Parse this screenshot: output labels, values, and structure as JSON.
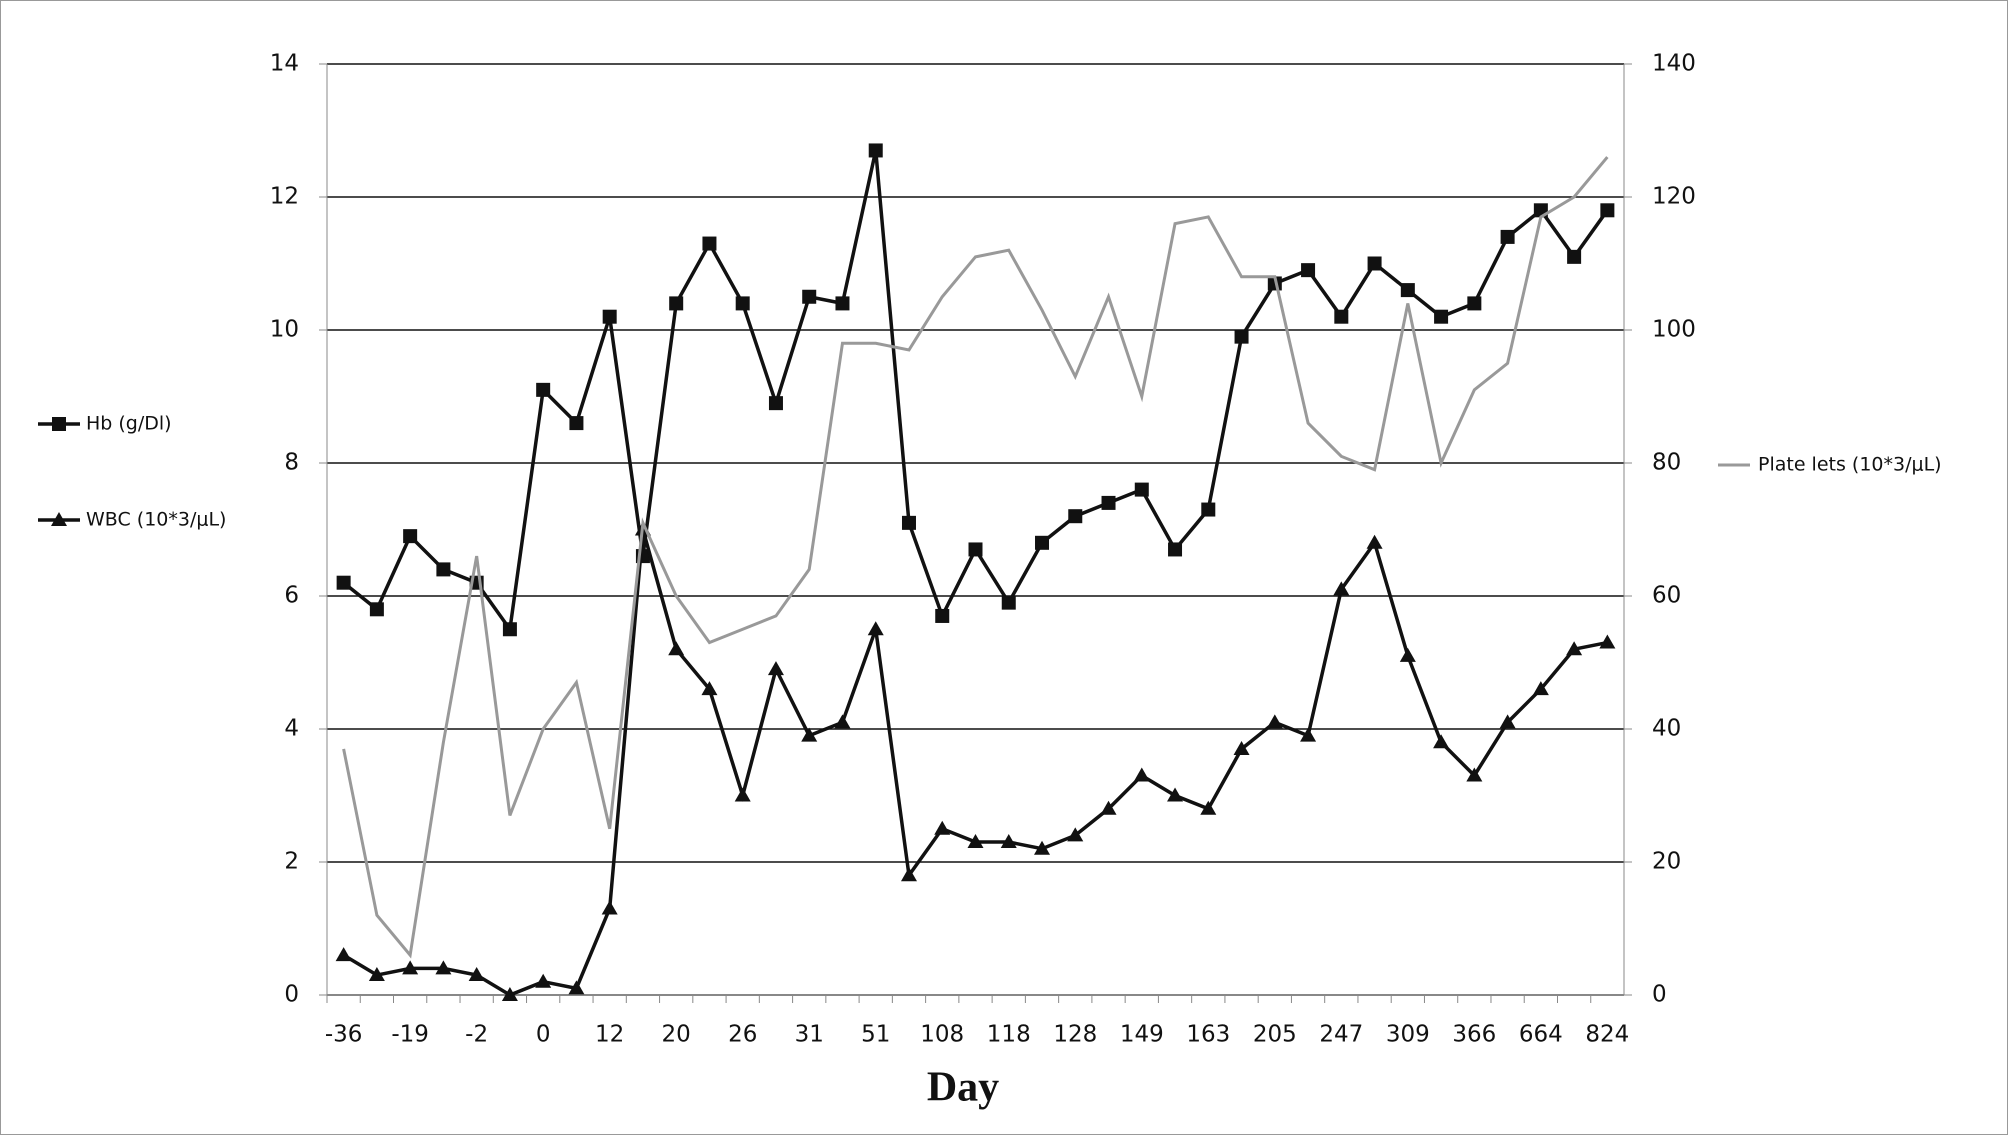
{
  "chart_data": {
    "type": "line",
    "x_label": "Day",
    "categories": [
      "-36",
      null,
      "-19",
      null,
      "-2",
      null,
      "0",
      null,
      "12",
      null,
      "20",
      null,
      "26",
      null,
      "31",
      null,
      "51",
      null,
      "108",
      null,
      "118",
      null,
      "128",
      null,
      "149",
      null,
      "163",
      null,
      "205",
      null,
      "247",
      null,
      "309",
      null,
      "366",
      null,
      "664",
      null,
      "824"
    ],
    "series": [
      {
        "name": "Hb (g/Dl)",
        "color": "#111111",
        "marker": "square",
        "values": [
          6.2,
          5.8,
          6.9,
          6.4,
          6.2,
          5.5,
          9.1,
          8.6,
          10.2,
          6.6,
          10.4,
          11.3,
          10.4,
          8.9,
          10.5,
          10.4,
          12.7,
          7.1,
          5.7,
          6.7,
          5.9,
          6.8,
          7.2,
          7.4,
          7.6,
          6.7,
          7.3,
          9.9,
          10.7,
          10.9,
          10.2,
          11.0,
          10.6,
          10.2,
          10.4,
          11.4,
          11.8,
          11.1,
          11.8
        ]
      },
      {
        "name": "WBC (10*3/μL)",
        "color": "#111111",
        "marker": "triangle",
        "values": [
          0.6,
          0.3,
          0.4,
          0.4,
          0.3,
          0.0,
          0.2,
          0.1,
          1.3,
          7.0,
          5.2,
          4.6,
          3.0,
          4.9,
          3.9,
          4.1,
          5.5,
          1.8,
          2.5,
          2.3,
          2.3,
          2.2,
          2.4,
          2.8,
          3.3,
          3.0,
          2.8,
          3.7,
          4.1,
          3.9,
          6.1,
          6.8,
          5.1,
          3.8,
          3.3,
          4.1,
          4.6,
          5.2,
          5.3
        ]
      },
      {
        "name": "Plate lets (10*3/μL)",
        "color": "#999999",
        "marker": "none",
        "axis": "y2",
        "values": [
          37,
          12,
          6,
          38,
          66,
          27,
          40,
          47,
          25,
          71,
          60,
          53,
          55,
          57,
          64,
          98,
          98,
          97,
          105,
          111,
          112,
          103,
          93,
          105,
          90,
          116,
          117,
          108,
          108,
          86,
          81,
          79,
          104,
          80,
          91,
          95,
          117,
          120,
          126
        ]
      }
    ],
    "ylim": [
      0,
      14
    ],
    "yticks": [
      0,
      2,
      4,
      6,
      8,
      10,
      12,
      14
    ],
    "y2lim": [
      0,
      140
    ],
    "y2ticks": [
      0,
      20,
      40,
      60,
      80,
      100,
      120,
      140
    ],
    "grid": true
  }
}
